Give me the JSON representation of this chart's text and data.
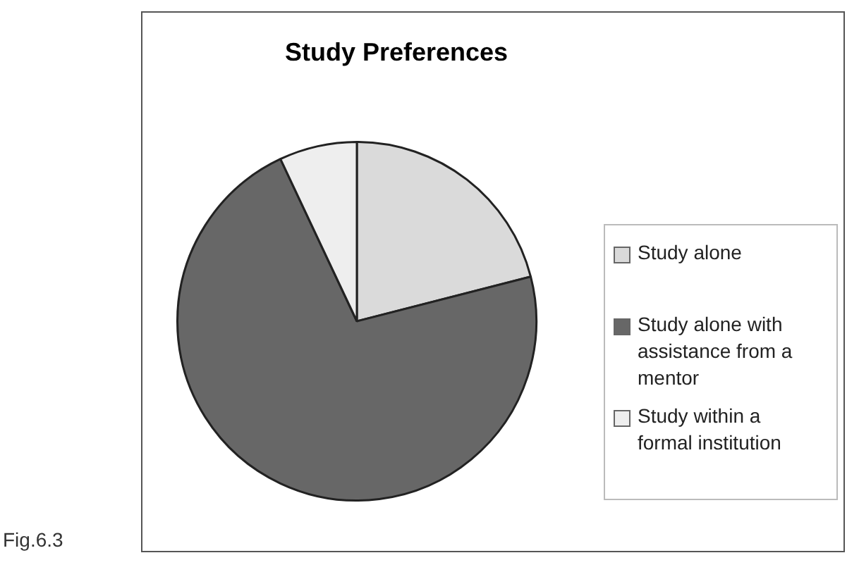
{
  "chart_data": {
    "type": "pie",
    "title": "Study Preferences",
    "categories": [
      "Study alone",
      "Study alone with assistance from a mentor",
      "Study within a formal institution"
    ],
    "values": [
      21,
      72,
      7
    ],
    "colors": [
      "#dadada",
      "#676767",
      "#eeeeee"
    ],
    "legend": "right",
    "annotations": [
      "Fig.6.3"
    ]
  }
}
